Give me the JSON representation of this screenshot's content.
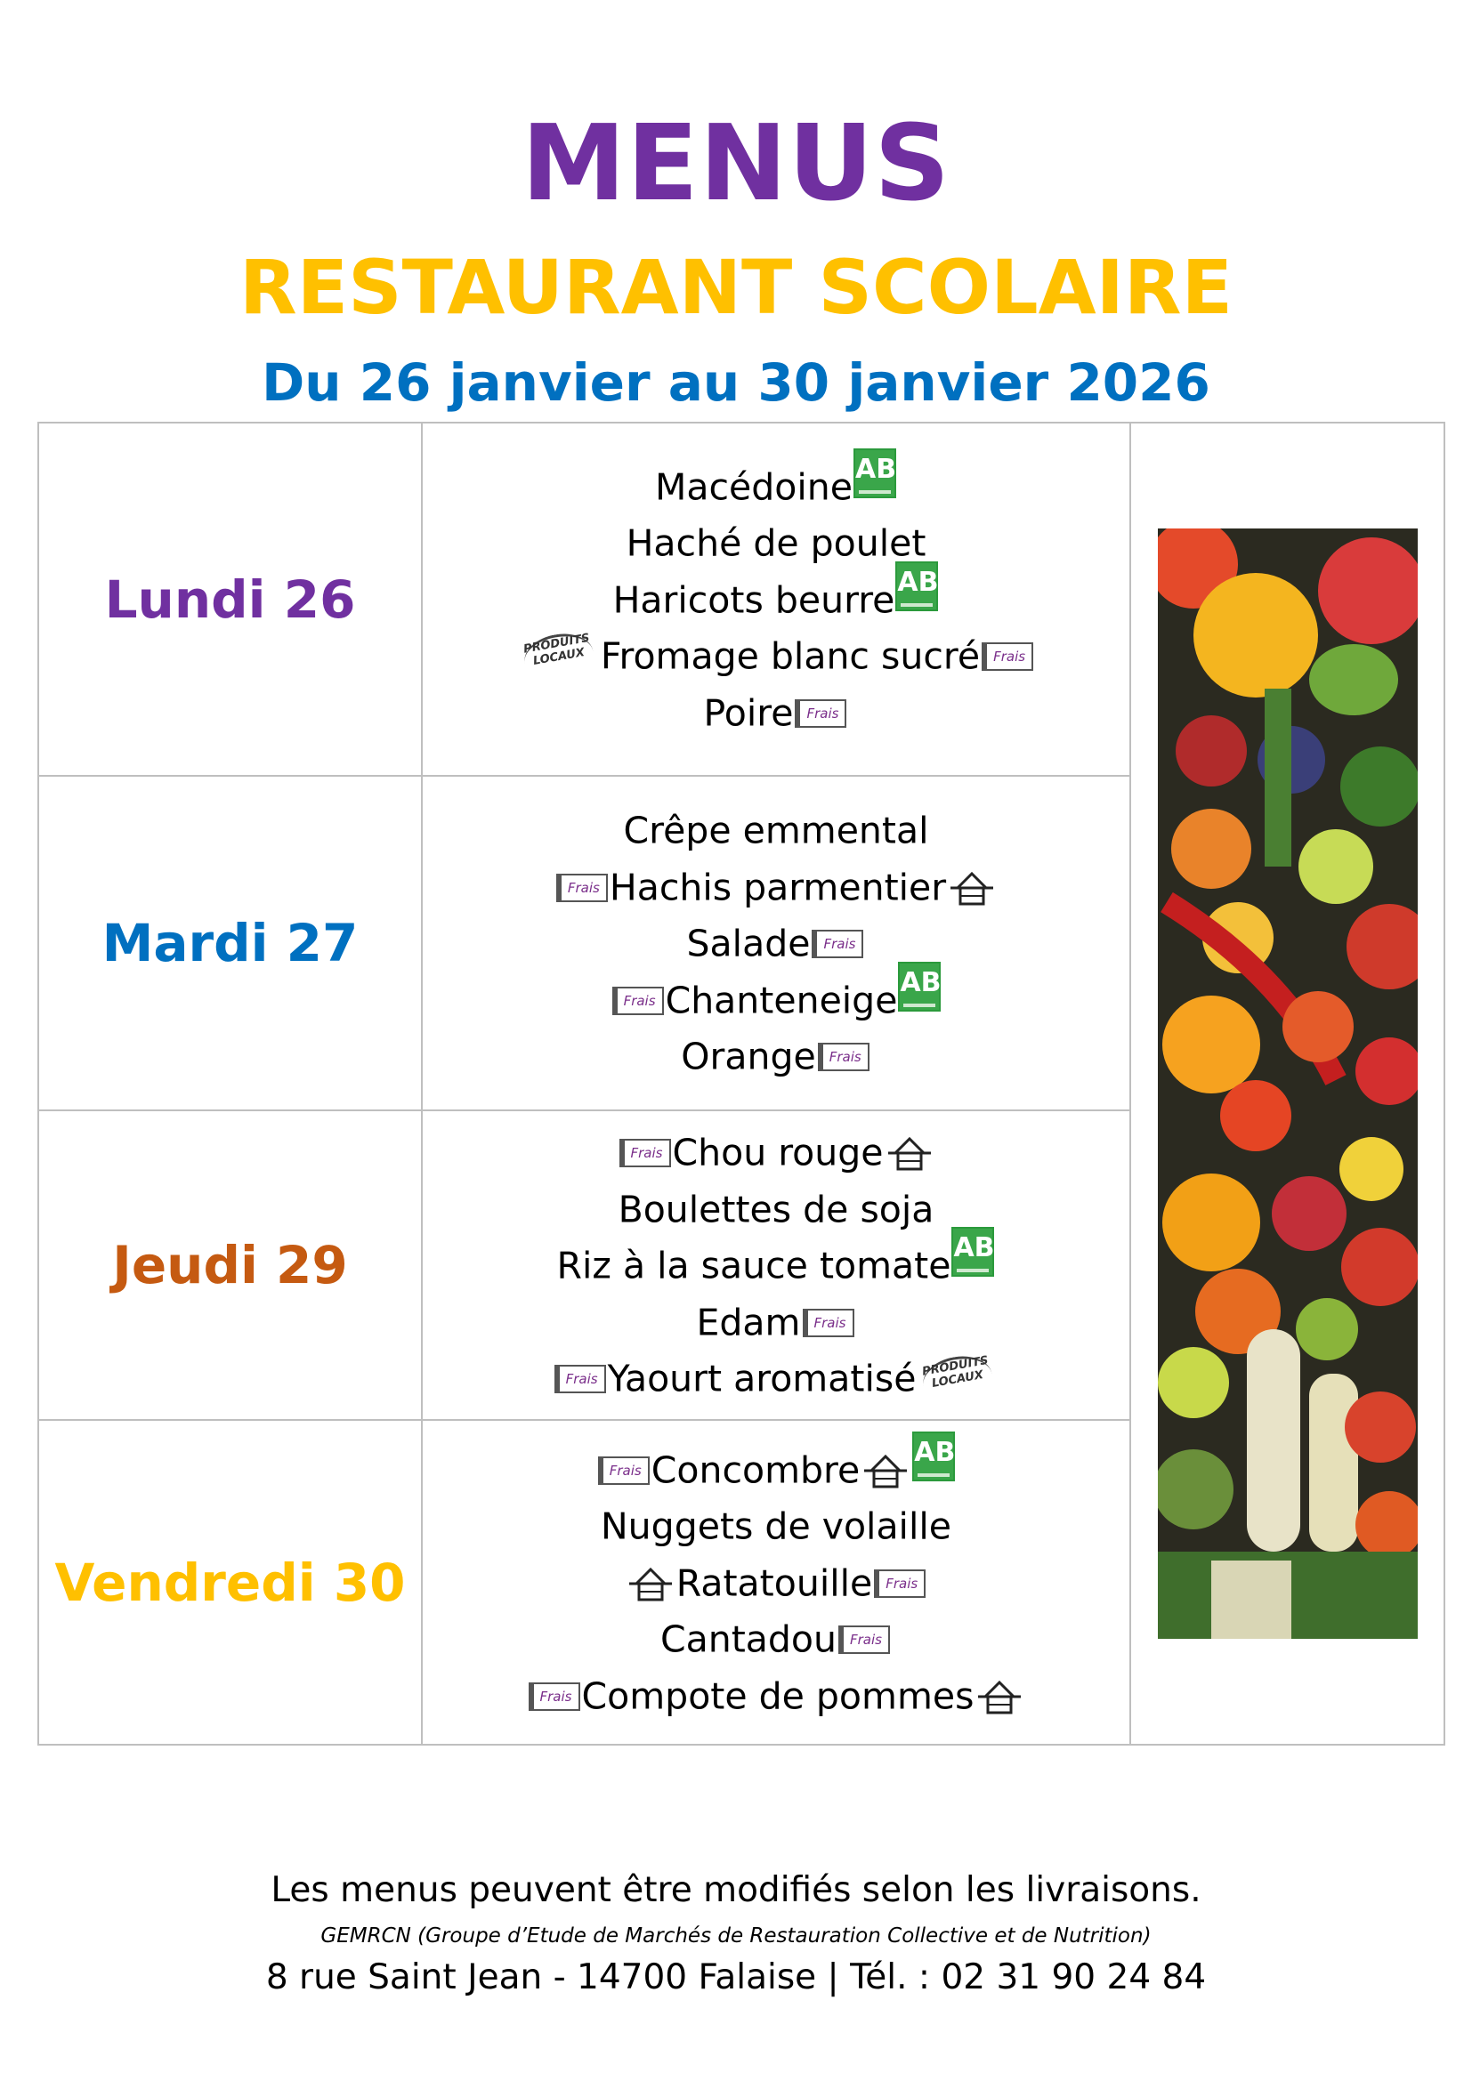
{
  "header": {
    "title": "MENUS",
    "subtitle": "RESTAURANT SCOLAIRE",
    "dates": "Du 26 janvier au 30 janvier 2026"
  },
  "labels": {
    "bio": "AB",
    "frais": "Frais",
    "local_line1": "PRODUITS",
    "local_line2": "LOCAUX"
  },
  "days": [
    {
      "name": "Lundi 26",
      "color": "#7030A0",
      "items": [
        "Macédoine",
        "Haché de poulet",
        "Haricots beurre",
        "Fromage blanc sucré",
        "Poire"
      ]
    },
    {
      "name": "Mardi 27",
      "color": "#0070C0",
      "items": [
        "Crêpe emmental",
        "Hachis parmentier",
        "Salade",
        "Chanteneige",
        "Orange"
      ]
    },
    {
      "name": "Jeudi 29",
      "color": "#C55A11",
      "items": [
        "Chou rouge",
        "Boulettes de soja",
        "Riz à la sauce tomate",
        "Edam",
        "Yaourt aromatisé"
      ]
    },
    {
      "name": "Vendredi 30",
      "color": "#FFC000",
      "items": [
        "Concombre",
        "Nuggets de volaille",
        "Ratatouille",
        "Cantadou",
        "Compote de pommes"
      ]
    }
  ],
  "footer": {
    "note": "Les menus peuvent être modifiés selon les livraisons.",
    "gemrcn": "GEMRCN (Groupe d’Etude de Marchés de Restauration Collective et de Nutrition)",
    "address": "8 rue Saint Jean - 14700 Falaise | Tél. : 02 31 90 24 84"
  },
  "icons": [
    "ab-bio-logo-icon",
    "frais-label-icon",
    "house-fait-maison-icon",
    "produits-locaux-icon",
    "vegetables-image"
  ]
}
